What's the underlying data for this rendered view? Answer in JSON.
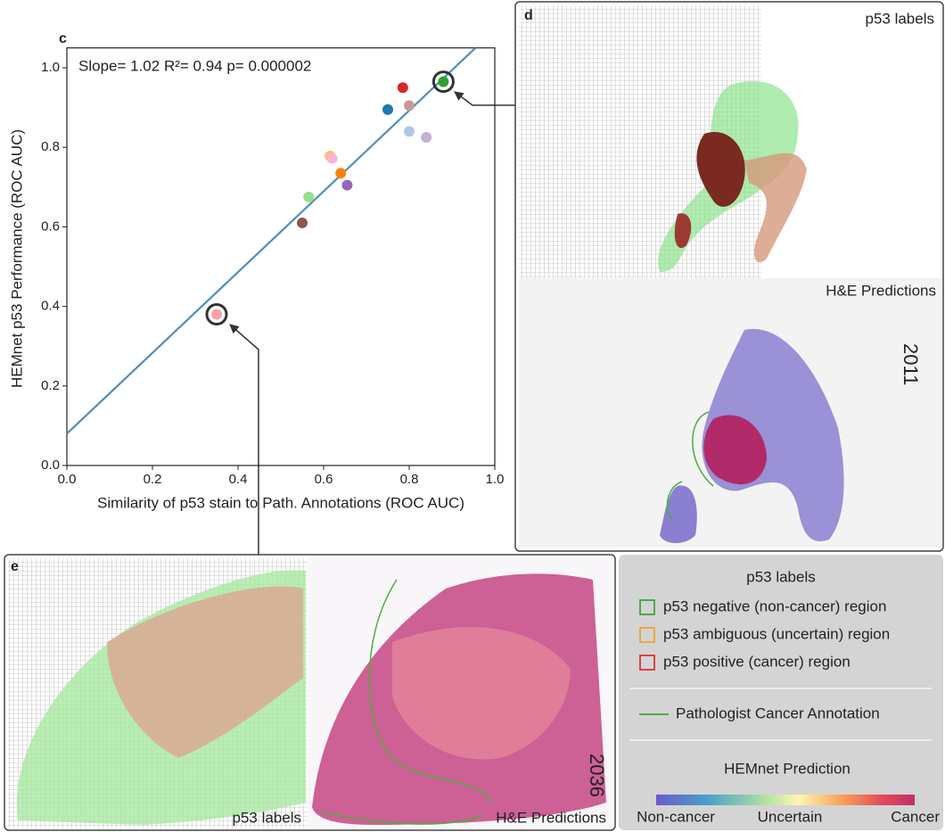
{
  "chart_data": {
    "type": "scatter",
    "x_label": "Similarity of p53 stain to Path. Annotations (ROC AUC)",
    "y_label": "HEMnet p53 Performance (ROC AUC)",
    "annotation": "Slope= 1.02 R²= 0.94 p= 0.000002",
    "x": [
      0.35,
      0.55,
      0.565,
      0.615,
      0.62,
      0.64,
      0.655,
      0.75,
      0.785,
      0.8,
      0.8,
      0.84,
      0.88
    ],
    "values": [
      0.38,
      0.61,
      0.675,
      0.778,
      0.772,
      0.735,
      0.705,
      0.895,
      0.95,
      0.905,
      0.84,
      0.825,
      0.965
    ],
    "colors": [
      "#f4a3a3",
      "#8c564b",
      "#98df8a",
      "#ffbb78",
      "#f7b6d2",
      "#ff7f0e",
      "#9467bd",
      "#1f77b4",
      "#d62728",
      "#c49c94",
      "#aec7e8",
      "#c5b0d5",
      "#2ca02c"
    ],
    "circled": [
      true,
      false,
      false,
      false,
      false,
      false,
      false,
      false,
      false,
      false,
      false,
      false,
      true
    ],
    "fit_line": {
      "x": [
        0,
        0.955
      ],
      "y": [
        0.08,
        1.05
      ],
      "color": "#4a8fc2"
    },
    "xlim": [
      0,
      1.0
    ],
    "ylim": [
      0,
      1.05
    ],
    "xticks": [
      {
        "value": 0,
        "label": "0.0"
      },
      0.2,
      0.4,
      0.6,
      0.8,
      {
        "value": 1,
        "label": "1.0"
      }
    ],
    "yticks": [
      {
        "value": 0,
        "label": "0.0"
      },
      0.2,
      0.4,
      0.6,
      0.8,
      {
        "value": 1,
        "label": "1.0"
      }
    ]
  },
  "panel_labels": {
    "c": "c",
    "d": "d",
    "e": "e"
  },
  "panel_d": {
    "top_label": "p53 labels",
    "bottom_label": "H&E Predictions",
    "handwriting": "2011"
  },
  "panel_e": {
    "left_label": "p53 labels",
    "right_label": "H&E Predictions",
    "handwriting": "2036"
  },
  "legend": {
    "title": "p53 labels",
    "items": [
      {
        "label": "p53 negative (non-cancer) region",
        "color": "#3aa83a"
      },
      {
        "label": "p53 ambiguous (uncertain) region",
        "color": "#f0a030"
      },
      {
        "label": "p53 positive (cancer) region",
        "color": "#e03030"
      }
    ],
    "annotation_line": "Pathologist Cancer Annotation",
    "annotation_color": "#4caf3c",
    "colorbar_title": "HEMnet Prediction",
    "colorbar_labels": [
      "Non-cancer",
      "Uncertain",
      "Cancer"
    ]
  }
}
